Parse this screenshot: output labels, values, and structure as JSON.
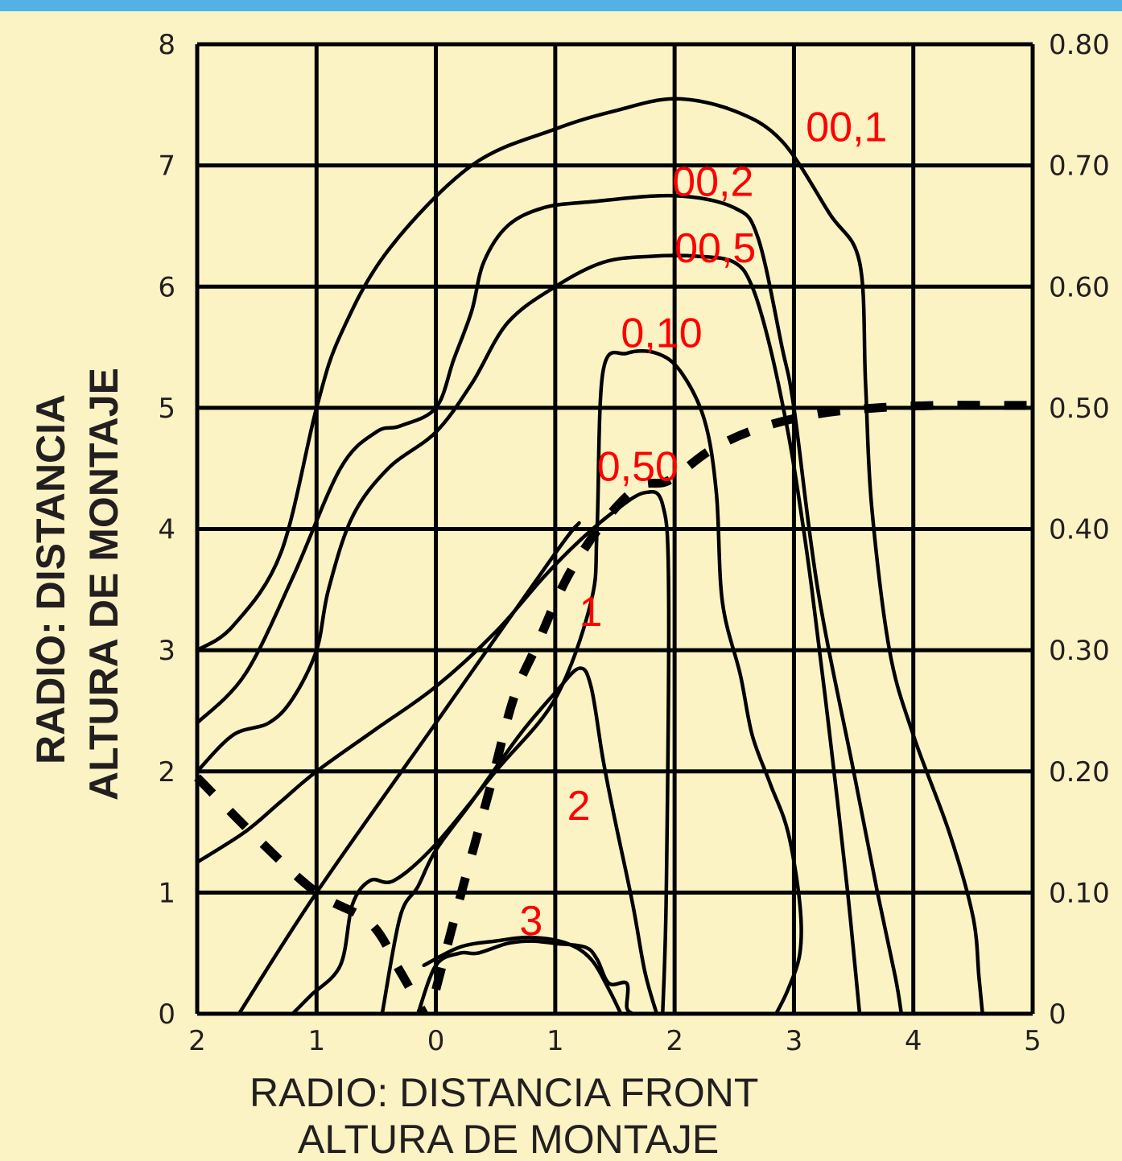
{
  "chart_data": {
    "type": "line",
    "xlabel_line1": "RADIO: DISTANCIA  FRONT",
    "xlabel_line2": "ALTURA DE  MONTAJE",
    "ylabel_line1": "RADIO: DISTANCIA",
    "ylabel_line2": "ALTURA DE MONTAJE",
    "x_ticks": [
      "2",
      "1",
      "0",
      "1",
      "2",
      "3",
      "4",
      "5"
    ],
    "y_left_ticks": [
      "0",
      "1",
      "2",
      "3",
      "4",
      "5",
      "6",
      "7",
      "8"
    ],
    "y_right_ticks": [
      "0",
      "0.10",
      "0.20",
      "0.30",
      "0.40",
      "0.50",
      "0.60",
      "0.70",
      "0.80"
    ],
    "xlim": [
      -2,
      5
    ],
    "ylim": [
      0,
      8
    ],
    "grid": true,
    "series": [
      {
        "name": "00,1",
        "x": [
          -2.0,
          -1.7,
          -1.3,
          -1.0,
          -0.8,
          -0.4,
          0.3,
          1.0,
          1.5,
          2.0,
          2.5,
          2.9,
          3.3,
          3.55,
          3.6,
          3.65,
          3.8,
          4.0,
          4.3,
          4.5,
          4.55,
          4.58
        ],
        "y": [
          3.0,
          3.2,
          3.8,
          5.0,
          5.6,
          6.3,
          7.0,
          7.3,
          7.45,
          7.55,
          7.45,
          7.2,
          6.6,
          6.2,
          5.2,
          4.2,
          3.0,
          2.3,
          1.5,
          0.8,
          0.3,
          0.0
        ]
      },
      {
        "name": "00,2",
        "x": [
          -2.0,
          -1.6,
          -1.2,
          -0.8,
          -0.5,
          -0.3,
          0.0,
          0.15,
          0.3,
          0.4,
          0.6,
          0.9,
          1.3,
          2.0,
          2.5,
          2.7,
          2.9,
          3.0,
          3.2,
          3.5,
          3.7,
          3.85,
          3.9
        ],
        "y": [
          2.4,
          2.8,
          3.6,
          4.5,
          4.8,
          4.85,
          5.0,
          5.4,
          5.8,
          6.2,
          6.5,
          6.65,
          6.7,
          6.75,
          6.65,
          6.4,
          5.5,
          5.0,
          3.5,
          2.0,
          1.0,
          0.3,
          0.0
        ]
      },
      {
        "name": "00,5",
        "x": [
          -2.0,
          -1.7,
          -1.4,
          -1.2,
          -1.0,
          -0.9,
          -0.7,
          -0.4,
          0.0,
          0.3,
          0.6,
          1.0,
          1.4,
          1.8,
          2.2,
          2.5,
          2.65,
          2.8,
          2.95,
          3.05,
          3.15,
          3.3,
          3.45,
          3.55
        ],
        "y": [
          2.0,
          2.3,
          2.4,
          2.6,
          3.0,
          3.5,
          4.1,
          4.5,
          4.8,
          5.2,
          5.7,
          6.0,
          6.2,
          6.25,
          6.25,
          6.2,
          6.0,
          5.5,
          4.8,
          4.2,
          3.5,
          2.3,
          1.0,
          0.0
        ]
      },
      {
        "name": "0,10",
        "x": [
          -1.2,
          -1.05,
          -0.8,
          -0.7,
          -0.55,
          -0.35,
          0.0,
          0.5,
          1.0,
          1.3,
          1.35,
          1.4,
          1.6,
          1.85,
          2.05,
          2.25,
          2.35,
          2.4,
          2.55,
          2.65,
          2.8,
          2.95,
          3.05,
          3.05,
          2.95,
          2.85
        ],
        "y": [
          0.0,
          0.15,
          0.4,
          0.9,
          1.1,
          1.1,
          1.4,
          2.0,
          2.6,
          3.4,
          4.0,
          5.3,
          5.45,
          5.45,
          5.3,
          4.9,
          4.3,
          3.4,
          2.8,
          2.3,
          1.9,
          1.5,
          0.9,
          0.5,
          0.2,
          0.0
        ]
      },
      {
        "name": "0,50",
        "x": [
          -2.0,
          -1.6,
          -1.3,
          -1.0,
          -0.5,
          0.0,
          0.5,
          0.9,
          1.2,
          1.5,
          1.75,
          1.9,
          1.95,
          1.93,
          1.9
        ],
        "y": [
          1.25,
          1.5,
          1.75,
          2.0,
          2.35,
          2.7,
          3.15,
          3.6,
          3.9,
          4.15,
          4.3,
          4.2,
          3.5,
          1.0,
          0.0
        ]
      },
      {
        "name": "1",
        "x": [
          -1.65,
          -1.0,
          0.0,
          1.0,
          1.2
        ],
        "y": [
          0.0,
          1.0,
          2.4,
          3.8,
          4.05
        ]
      },
      {
        "name": "2",
        "x": [
          -0.45,
          -0.3,
          -0.15,
          0.0,
          0.3,
          0.7,
          1.0,
          1.2,
          1.3,
          1.4,
          1.5,
          1.65,
          1.75,
          1.85
        ],
        "y": [
          0.0,
          0.8,
          1.05,
          1.35,
          1.75,
          2.3,
          2.65,
          2.85,
          2.7,
          2.1,
          1.6,
          0.9,
          0.35,
          0.0
        ]
      },
      {
        "name": "3",
        "x": [
          -0.15,
          0.0,
          0.2,
          0.35,
          0.6,
          0.8,
          1.0,
          1.25,
          1.35,
          1.45,
          1.6,
          1.6,
          1.65
        ],
        "y": [
          0.0,
          0.4,
          0.5,
          0.5,
          0.58,
          0.6,
          0.58,
          0.55,
          0.45,
          0.25,
          0.25,
          0.05,
          0.0
        ]
      },
      {
        "name": "3_inner",
        "x": [
          -0.1,
          0.2,
          0.5,
          0.8,
          1.1,
          1.3,
          1.45,
          1.55
        ],
        "y": [
          0.4,
          0.55,
          0.6,
          0.63,
          0.58,
          0.45,
          0.2,
          0.0
        ]
      },
      {
        "name": "dashed",
        "x": [
          0.0,
          0.2,
          0.45,
          0.65,
          0.85,
          1.1,
          1.4,
          1.7,
          1.95,
          2.3,
          2.7,
          3.2,
          3.7,
          4.2,
          4.7,
          5.0
        ],
        "y": [
          0.2,
          0.95,
          1.85,
          2.6,
          3.05,
          3.6,
          4.05,
          4.35,
          4.4,
          4.65,
          4.83,
          4.95,
          5.0,
          5.02,
          5.02,
          5.02
        ]
      }
    ],
    "dashed_left": {
      "x": [
        -2.0,
        -1.5,
        -1.0,
        -0.55,
        -0.3,
        -0.1
      ],
      "y": [
        1.95,
        1.45,
        1.0,
        0.75,
        0.35,
        0.0
      ]
    },
    "curve_labels": [
      "00,1",
      "00,2",
      "00,5",
      "0,10",
      "0,50",
      "1",
      "2",
      "3"
    ]
  }
}
